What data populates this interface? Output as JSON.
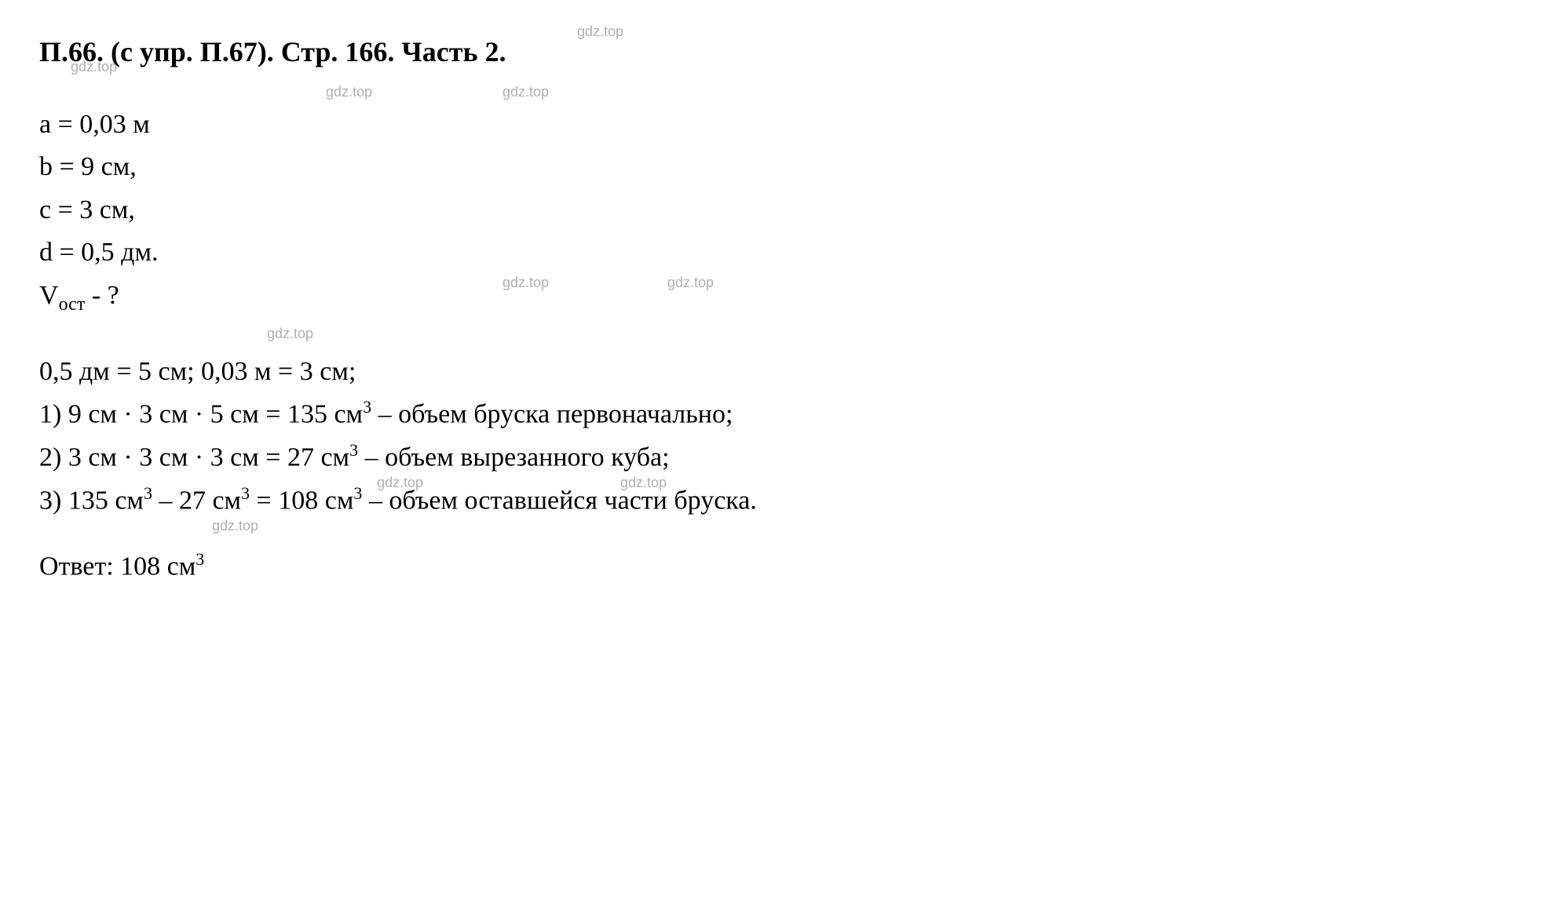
{
  "title": "П.66. (с упр. П.67). Стр. 166. Часть 2.",
  "watermark_text": "gdz.top",
  "watermark_color": "#b0b0b0",
  "text_color": "#000000",
  "background_color": "#ffffff",
  "given": {
    "lines": [
      "a = 0,03 м",
      "b = 9 см,",
      "c = 3 см,",
      "d = 0,5 дм."
    ],
    "question_prefix": "V",
    "question_subscript": "ост",
    "question_suffix": "  - ?"
  },
  "solution": {
    "conversion": "0,5 дм = 5 см; 0,03 м = 3 см;",
    "steps": [
      {
        "num": "1) ",
        "calc": "9 см · 3 см · 5 см = 135 см",
        "exp": "3",
        "desc": " – объем бруска первоначально;"
      },
      {
        "num": "2) ",
        "calc": "3 см · 3 см · 3 см = 27 см",
        "exp": "3",
        "desc": " – объем вырезанного куба;"
      },
      {
        "num": "3) ",
        "calc": "135 см",
        "exp1": "3",
        "mid": " – 27 см",
        "exp2": "3",
        "mid2": " = 108 см",
        "exp3": "3",
        "desc": " – объем оставшейся части бруска."
      }
    ]
  },
  "answer": {
    "prefix": "Ответ: 108 см",
    "exp": "3"
  },
  "typography": {
    "title_fontsize": 36,
    "body_fontsize": 34,
    "font_family": "Times New Roman"
  }
}
